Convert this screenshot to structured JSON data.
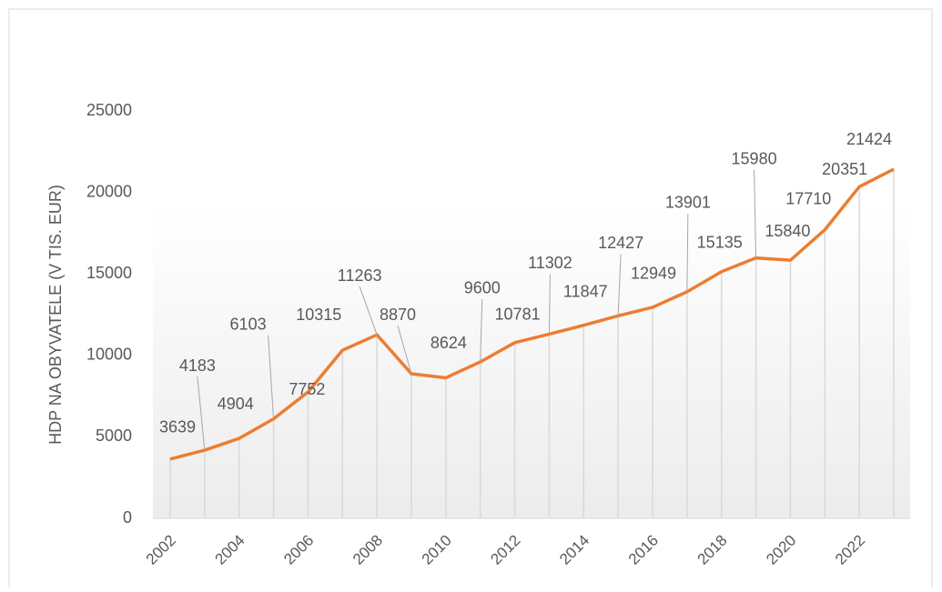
{
  "chart_data": {
    "type": "line",
    "y_label": "HDP NA OBYVATELE (V TIS. EUR)",
    "categories": [
      "2002",
      null,
      "2004",
      null,
      "2006",
      null,
      "2008",
      null,
      "2010",
      null,
      "2012",
      null,
      "2014",
      null,
      "2016",
      null,
      "2018",
      null,
      "2020",
      null,
      "2022",
      null
    ],
    "series": [
      {
        "name": "HDP",
        "color": "#ed7d31",
        "values": [
          3639,
          4183,
          4904,
          6103,
          7752,
          10315,
          11263,
          8870,
          8624,
          9600,
          10781,
          11302,
          11847,
          12427,
          12949,
          13901,
          15135,
          15980,
          15840,
          17710,
          20351,
          21424
        ]
      }
    ],
    "ylim": [
      0,
      25000
    ],
    "yticks": [
      0,
      5000,
      10000,
      15000,
      20000,
      25000
    ],
    "drop_lines": true
  }
}
